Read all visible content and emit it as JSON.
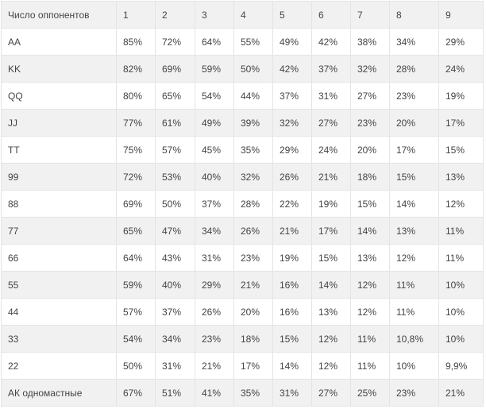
{
  "table": {
    "headers": [
      "Число оппонентов",
      "1",
      "2",
      "3",
      "4",
      "5",
      "6",
      "7",
      "8",
      "9"
    ],
    "rows": [
      {
        "hand": "AA",
        "values": [
          "85%",
          "72%",
          "64%",
          "55%",
          "49%",
          "42%",
          "38%",
          "34%",
          "29%"
        ]
      },
      {
        "hand": "KK",
        "values": [
          "82%",
          "69%",
          "59%",
          "50%",
          "42%",
          "37%",
          "32%",
          "28%",
          "24%"
        ]
      },
      {
        "hand": "QQ",
        "values": [
          "80%",
          "65%",
          "54%",
          "44%",
          "37%",
          "31%",
          "27%",
          "23%",
          "19%"
        ]
      },
      {
        "hand": "JJ",
        "values": [
          "77%",
          "61%",
          "49%",
          "39%",
          "32%",
          "27%",
          "23%",
          "20%",
          "17%"
        ]
      },
      {
        "hand": "TT",
        "values": [
          "75%",
          "57%",
          "45%",
          "35%",
          "29%",
          "24%",
          "20%",
          "17%",
          "15%"
        ]
      },
      {
        "hand": "99",
        "values": [
          "72%",
          "53%",
          "40%",
          "32%",
          "26%",
          "21%",
          "18%",
          "15%",
          "13%"
        ]
      },
      {
        "hand": "88",
        "values": [
          "69%",
          "50%",
          "37%",
          "28%",
          "22%",
          "19%",
          "15%",
          "14%",
          "12%"
        ]
      },
      {
        "hand": "77",
        "values": [
          "65%",
          "47%",
          "34%",
          "26%",
          "21%",
          "17%",
          "14%",
          "13%",
          "11%"
        ]
      },
      {
        "hand": "66",
        "values": [
          "64%",
          "43%",
          "31%",
          "23%",
          "19%",
          "15%",
          "13%",
          "12%",
          "11%"
        ]
      },
      {
        "hand": "55",
        "values": [
          "59%",
          "40%",
          "29%",
          "21%",
          "16%",
          "14%",
          "12%",
          "11%",
          "10%"
        ]
      },
      {
        "hand": "44",
        "values": [
          "57%",
          "37%",
          "26%",
          "20%",
          "16%",
          "13%",
          "12%",
          "11%",
          "10%"
        ]
      },
      {
        "hand": "33",
        "values": [
          "54%",
          "34%",
          "23%",
          "18%",
          "15%",
          "12%",
          "11%",
          "10,8%",
          "10%"
        ]
      },
      {
        "hand": "22",
        "values": [
          "50%",
          "31%",
          "21%",
          "17%",
          "14%",
          "12%",
          "11%",
          "10%",
          "9,9%"
        ]
      },
      {
        "hand": "АК одномастные",
        "values": [
          "67%",
          "51%",
          "41%",
          "35%",
          "31%",
          "27%",
          "25%",
          "23%",
          "21%"
        ]
      }
    ]
  }
}
